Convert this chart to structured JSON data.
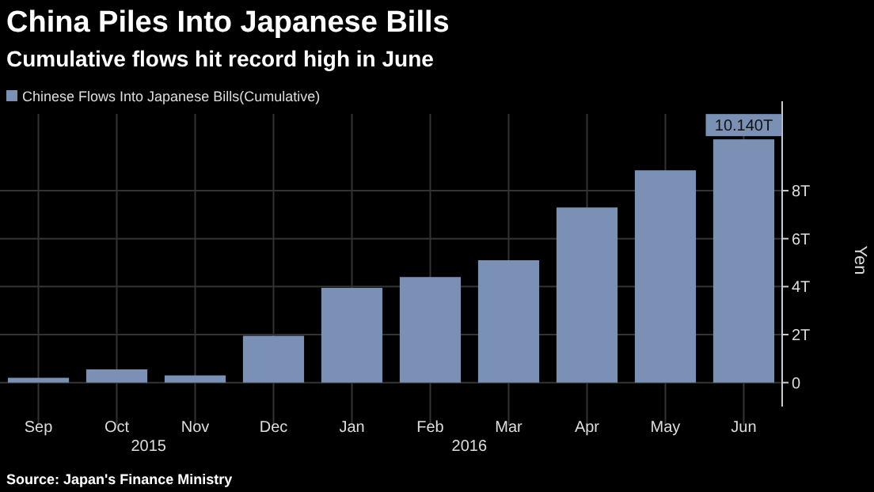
{
  "chart_data": {
    "type": "bar",
    "title": "China Piles Into Japanese Bills",
    "subtitle": "Cumulative flows hit record high in June",
    "ylabel": "Yen",
    "categories": [
      "Sep",
      "Oct",
      "Nov",
      "Dec",
      "Jan",
      "Feb",
      "Mar",
      "Apr",
      "May",
      "Jun"
    ],
    "series": [
      {
        "name": "Chinese Flows Into Japanese Bills(Cumulative)",
        "color": "#7a90b4",
        "values": [
          0.2,
          0.55,
          0.3,
          1.95,
          3.95,
          4.4,
          5.1,
          7.3,
          8.85,
          10.14
        ],
        "value_labels": [
          null,
          null,
          null,
          null,
          null,
          null,
          null,
          null,
          null,
          "10.140T"
        ]
      }
    ],
    "ylim": [
      -1,
      11.2
    ],
    "yticks": [
      0,
      {
        "value": 2,
        "label": "2T"
      },
      {
        "value": 4,
        "label": "4T"
      },
      {
        "value": 6,
        "label": "6T"
      },
      {
        "value": 8,
        "label": "8T"
      }
    ],
    "grid": true,
    "legend": "top left",
    "annotations": [
      "2015",
      "2016",
      "Source: Japan's Finance Ministry"
    ]
  }
}
